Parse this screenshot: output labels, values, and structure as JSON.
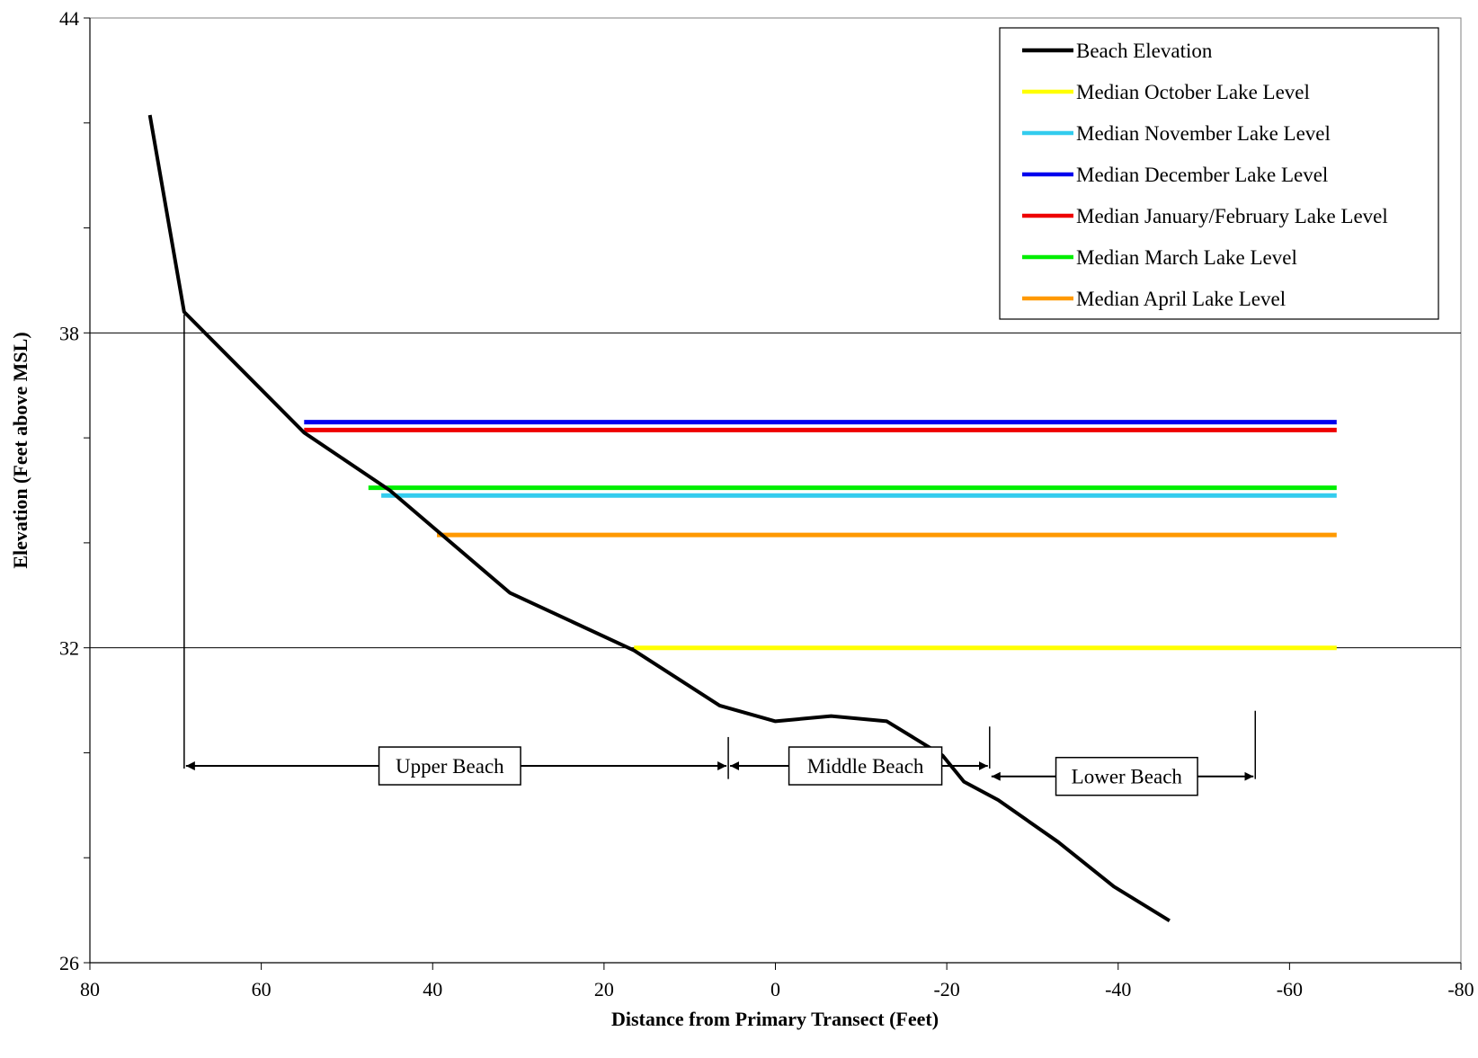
{
  "chart_data": {
    "type": "line",
    "title": "",
    "xlabel": "Distance from Primary Transect (Feet)",
    "ylabel": "Elevation (Feet above MSL)",
    "xlim": [
      80,
      -80
    ],
    "ylim": [
      26,
      44
    ],
    "x_ticks": [
      80,
      60,
      40,
      20,
      0,
      -20,
      -40,
      -60,
      -80
    ],
    "y_ticks": [
      26,
      32,
      38,
      44
    ],
    "gridlines_y": [
      32,
      38
    ],
    "legend_position": "top-right",
    "series": [
      {
        "name": "Beach Elevation",
        "color": "#000000",
        "x": [
          73,
          69,
          55,
          45,
          31,
          16.5,
          6.5,
          0,
          -6.5,
          -13,
          -19.5,
          -22,
          -26,
          -33,
          -39.5,
          -46
        ],
        "y": [
          42.15,
          38.4,
          36.1,
          35.0,
          33.05,
          31.95,
          30.9,
          30.6,
          30.7,
          30.6,
          29.95,
          29.45,
          29.1,
          28.3,
          27.45,
          26.8
        ]
      },
      {
        "name": "Median October Lake Level",
        "color": "#ffff00",
        "x": [
          16.5,
          -65.5
        ],
        "y": [
          32.0,
          32.0
        ]
      },
      {
        "name": "Median November Lake Level",
        "color": "#33ccee",
        "x": [
          46,
          -65.5
        ],
        "y": [
          34.9,
          34.9
        ]
      },
      {
        "name": "Median December Lake Level",
        "color": "#0000ee",
        "x": [
          55,
          -65.5
        ],
        "y": [
          36.3,
          36.3
        ]
      },
      {
        "name": "Median January/February Lake Level",
        "color": "#ee0000",
        "x": [
          55,
          -65.5
        ],
        "y": [
          36.15,
          36.15
        ]
      },
      {
        "name": "Median March Lake Level",
        "color": "#00ee00",
        "x": [
          47.5,
          -65.5
        ],
        "y": [
          35.05,
          35.05
        ]
      },
      {
        "name": "Median April Lake Level",
        "color": "#ff9900",
        "x": [
          39.5,
          -65.5
        ],
        "y": [
          34.15,
          34.15
        ]
      }
    ],
    "annotations": {
      "boundaries": [
        {
          "x": 69,
          "y_top": 38.35,
          "y_bottom": 29.7
        },
        {
          "x": 5.5,
          "y_top": 30.3,
          "y_bottom": 29.5
        },
        {
          "x": -25,
          "y_top": 30.5,
          "y_bottom": 29.7
        },
        {
          "x": -56,
          "y_top": 30.8,
          "y_bottom": 29.5
        }
      ],
      "zones": [
        {
          "label": "Upper Beach",
          "x_from": 69,
          "x_to": 5.5,
          "y": 29.75,
          "label_x": 38
        },
        {
          "label": "Middle Beach",
          "x_from": 5.5,
          "x_to": -25,
          "y": 29.75,
          "label_x": -10.5
        },
        {
          "label": "Lower Beach",
          "x_from": -25,
          "x_to": -56,
          "y": 29.55,
          "label_x": -41
        }
      ]
    }
  }
}
